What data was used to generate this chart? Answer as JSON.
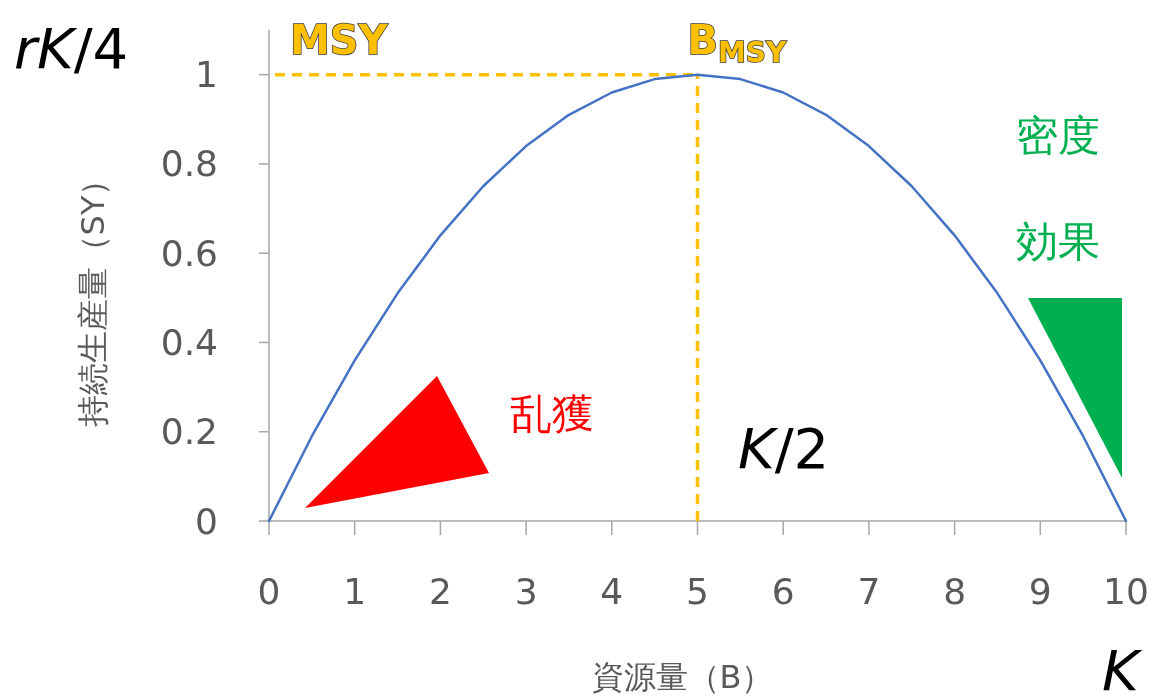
{
  "chart_data": {
    "type": "line",
    "x": [
      0,
      0.5,
      1,
      1.5,
      2,
      2.5,
      3,
      3.5,
      4,
      4.5,
      5,
      5.5,
      6,
      6.5,
      7,
      7.5,
      8,
      8.5,
      9,
      9.5,
      10
    ],
    "series": [
      {
        "color": "#4472c4",
        "values": [
          0,
          0.19,
          0.36,
          0.51,
          0.64,
          0.75,
          0.84,
          0.91,
          0.96,
          0.99,
          1,
          0.99,
          0.96,
          0.91,
          0.84,
          0.75,
          0.64,
          0.51,
          0.36,
          0.19,
          0
        ]
      }
    ],
    "xlim": [
      0,
      10
    ],
    "ylim": [
      0,
      1.1
    ],
    "xticks": [
      0,
      1,
      2,
      3,
      4,
      5,
      6,
      7,
      8,
      9,
      10
    ],
    "yticks": [
      0,
      0.2,
      0.4,
      0.6,
      0.8,
      1
    ],
    "xlabel": "資源量（B）",
    "ylabel": "持続生産量（SY）",
    "ref_lines": [
      {
        "axis": "y",
        "value": 1,
        "label": "MSY",
        "color": "#ffc000",
        "line_style": "dashed"
      },
      {
        "axis": "x",
        "value": 5,
        "label": "B$_{MSY}$",
        "color": "#ffc000",
        "line_style": "dashed"
      }
    ],
    "annotations": [
      "rK/4",
      "K/2",
      "K",
      "乱獲",
      "密度",
      "効果"
    ]
  }
}
